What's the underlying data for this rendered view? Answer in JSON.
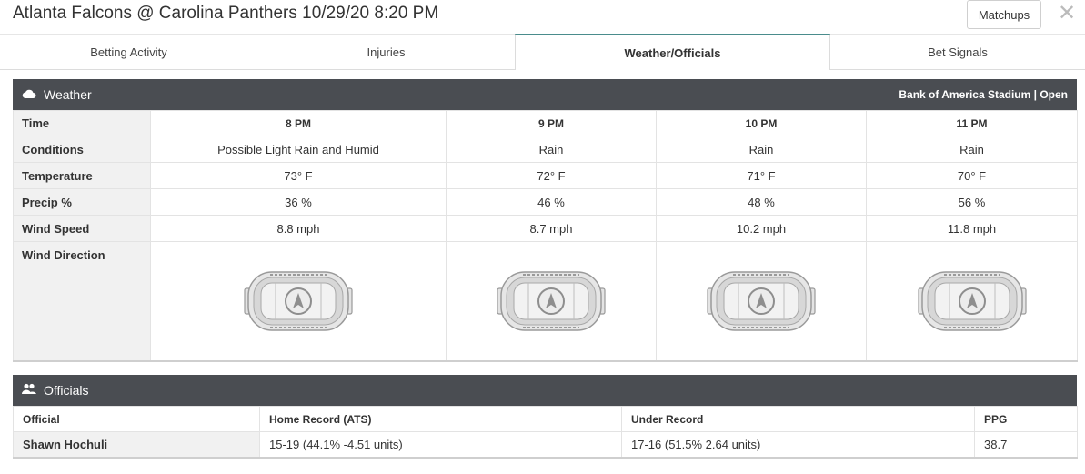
{
  "header": {
    "title": "Atlanta Falcons @ Carolina Panthers 10/29/20 8:20 PM",
    "matchups_label": "Matchups",
    "close_glyph": "✕"
  },
  "tabs": [
    {
      "label": "Betting Activity",
      "active": false
    },
    {
      "label": "Injuries",
      "active": false
    },
    {
      "label": "Weather/Officials",
      "active": true
    },
    {
      "label": "Bet Signals",
      "active": false
    }
  ],
  "weather": {
    "title": "Weather",
    "icon": "cloud-icon",
    "stadium": "Bank of America Stadium | Open",
    "row_labels": {
      "time": "Time",
      "conditions": "Conditions",
      "temperature": "Temperature",
      "precip": "Precip %",
      "wind_speed": "Wind Speed",
      "wind_direction": "Wind Direction"
    },
    "hours": [
      {
        "time": "8 PM",
        "conditions": "Possible Light Rain and Humid",
        "temperature": "73° F",
        "precip": "36 %",
        "wind_speed": "8.8 mph"
      },
      {
        "time": "9 PM",
        "conditions": "Rain",
        "temperature": "72° F",
        "precip": "46 %",
        "wind_speed": "8.7 mph"
      },
      {
        "time": "10 PM",
        "conditions": "Rain",
        "temperature": "71° F",
        "precip": "48 %",
        "wind_speed": "10.2 mph"
      },
      {
        "time": "11 PM",
        "conditions": "Rain",
        "temperature": "70° F",
        "precip": "56 %",
        "wind_speed": "11.8 mph"
      }
    ]
  },
  "officials": {
    "title": "Officials",
    "icon": "users-icon",
    "columns": [
      "Official",
      "Home Record (ATS)",
      "Under Record",
      "PPG"
    ],
    "rows": [
      {
        "official": "Shawn Hochuli",
        "home_record": "15-19 (44.1% -4.51 units)",
        "under_record": "17-16 (51.5% 2.64 units)",
        "ppg": "38.7"
      }
    ]
  },
  "colors": {
    "panel_header": "#4a4d52",
    "active_tab_accent": "#4a8c8c",
    "label_bg": "#f1f1f1"
  }
}
